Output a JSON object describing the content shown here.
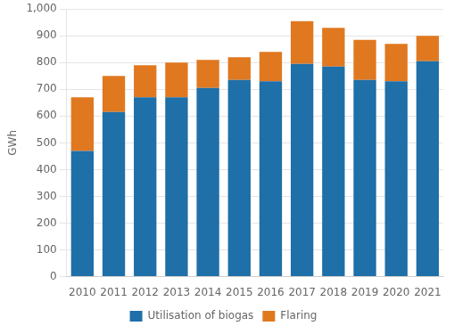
{
  "chart_data": {
    "type": "bar",
    "ylabel": "GWh",
    "categories": [
      "2010",
      "2011",
      "2012",
      "2013",
      "2014",
      "2015",
      "2016",
      "2017",
      "2018",
      "2019",
      "2020",
      "2021"
    ],
    "series": [
      {
        "name": "Utilisation of biogas",
        "color": "#1f6fa8",
        "values": [
          470,
          615,
          670,
          670,
          705,
          735,
          730,
          795,
          785,
          735,
          730,
          805
        ]
      },
      {
        "name": "Flaring",
        "color": "#e07820",
        "values": [
          200,
          135,
          120,
          130,
          105,
          85,
          110,
          160,
          145,
          150,
          140,
          95
        ]
      }
    ],
    "stacked": true,
    "ylim": [
      0,
      1000
    ],
    "yticks": [
      0,
      100,
      200,
      300,
      400,
      500,
      600,
      700,
      800,
      900,
      {
        "value": 1000,
        "label": "1,000"
      }
    ],
    "grid": true,
    "legend": "bottom"
  }
}
